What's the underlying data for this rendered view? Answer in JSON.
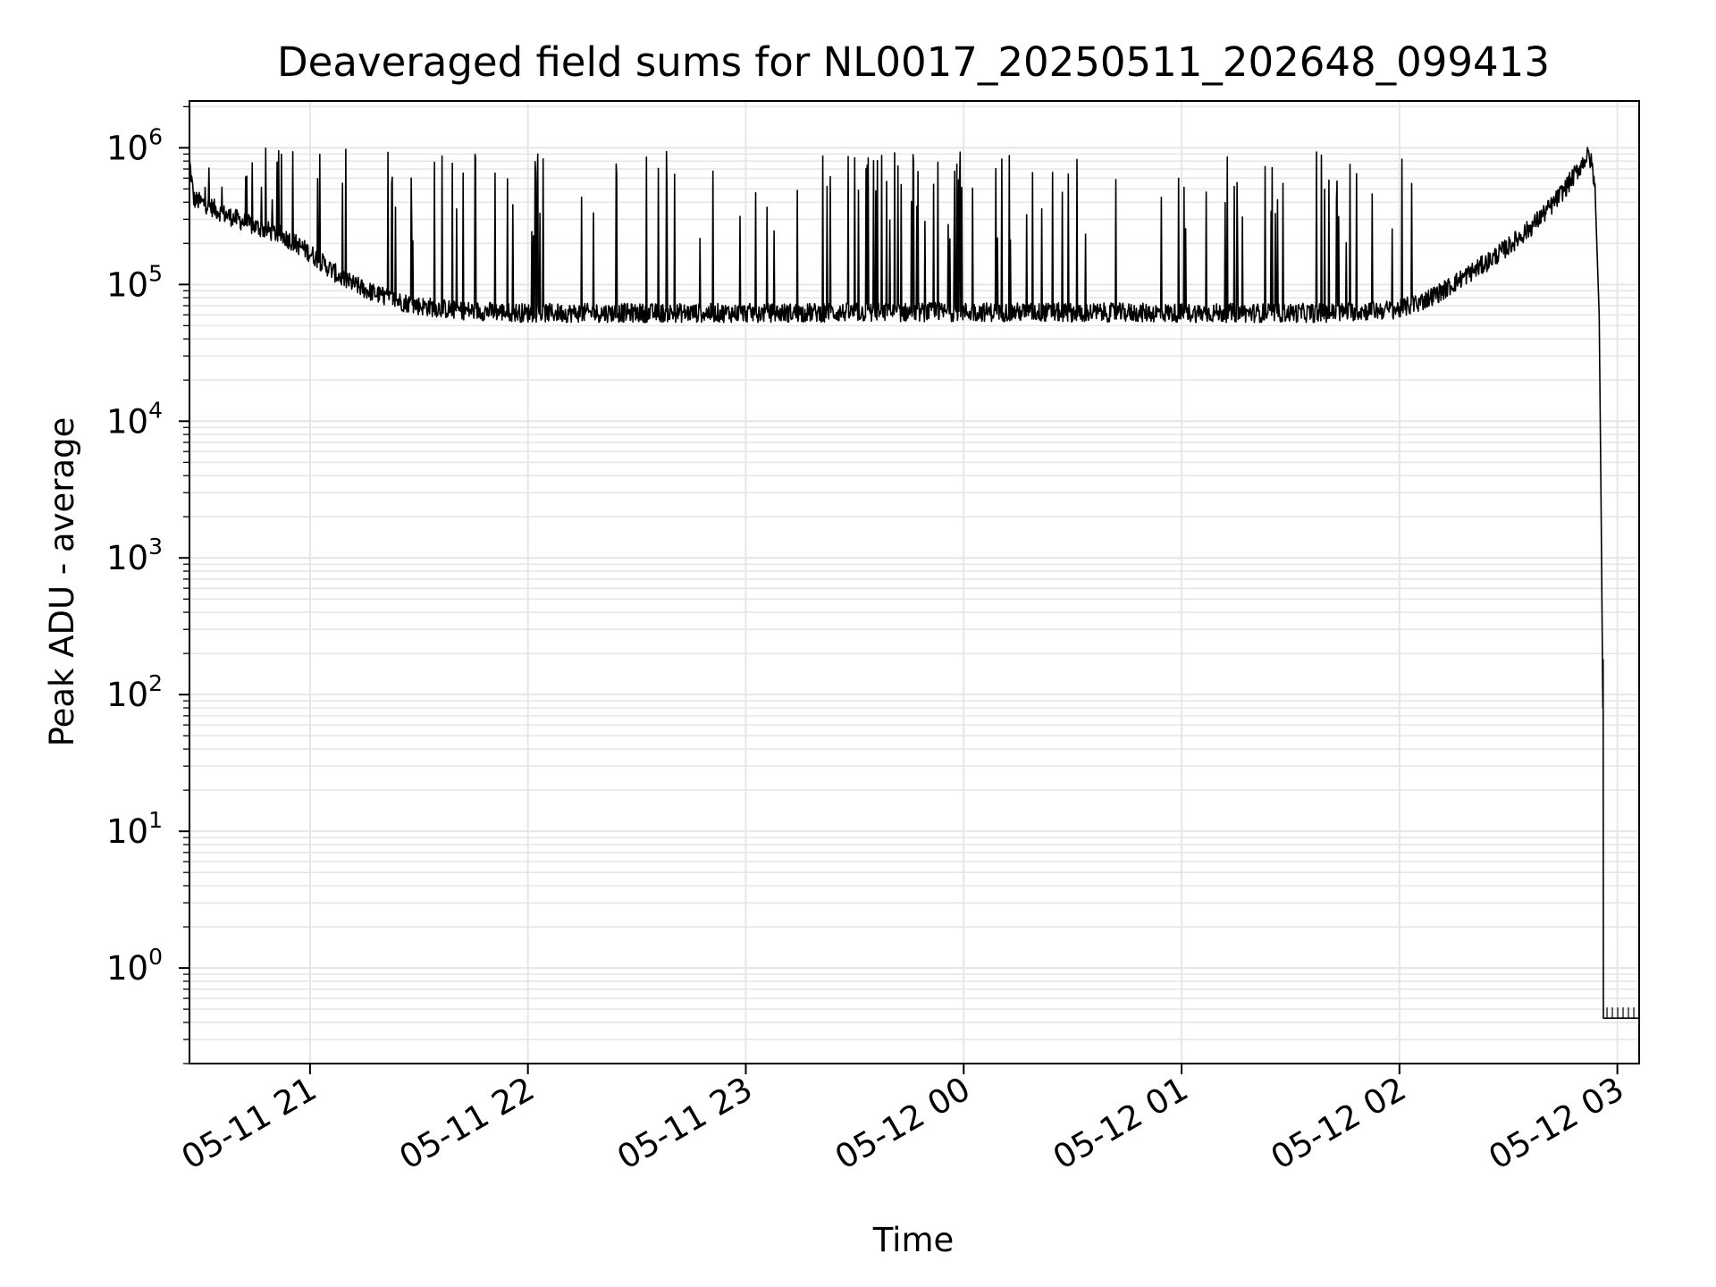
{
  "chart_data": {
    "type": "line",
    "title": "Deaveraged field sums for NL0017_20250511_202648_099413",
    "xlabel": "Time",
    "ylabel": "Peak ADU - average",
    "yscale": "log",
    "ylim": [
      0.2,
      2200000
    ],
    "xlim": [
      "2025-05-11 20:26:48",
      "2025-05-12 03:06:00"
    ],
    "grid": true,
    "line_color": "#000000",
    "grid_color": "#e6e6e6",
    "x_ticks": [
      {
        "value": "2025-05-11 21:00",
        "label": "05-11 21"
      },
      {
        "value": "2025-05-11 22:00",
        "label": "05-11 22"
      },
      {
        "value": "2025-05-11 23:00",
        "label": "05-11 23"
      },
      {
        "value": "2025-05-12 00:00",
        "label": "05-12 00"
      },
      {
        "value": "2025-05-12 01:00",
        "label": "05-12 01"
      },
      {
        "value": "2025-05-12 02:00",
        "label": "05-12 02"
      },
      {
        "value": "2025-05-12 03:00",
        "label": "05-12 03"
      }
    ],
    "y_ticks": [
      {
        "value": 1,
        "base": "10",
        "exp": "0"
      },
      {
        "value": 10,
        "base": "10",
        "exp": "1"
      },
      {
        "value": 100,
        "base": "10",
        "exp": "2"
      },
      {
        "value": 1000,
        "base": "10",
        "exp": "3"
      },
      {
        "value": 10000,
        "base": "10",
        "exp": "4"
      },
      {
        "value": 100000,
        "base": "10",
        "exp": "5"
      },
      {
        "value": 1000000,
        "base": "10",
        "exp": "6"
      }
    ],
    "series": [
      {
        "points": [
          [
            "2025-05-11 20:26:48",
            800000
          ],
          [
            "2025-05-11 20:28",
            420000
          ],
          [
            "2025-05-11 20:32",
            380000
          ],
          [
            "2025-05-11 20:36",
            330000
          ],
          [
            "2025-05-11 20:40",
            300000
          ],
          [
            "2025-05-11 20:44",
            270000
          ],
          [
            "2025-05-11 20:48",
            250000
          ],
          [
            "2025-05-11 20:52",
            230000
          ],
          [
            "2025-05-11 20:56",
            200000
          ],
          [
            "2025-05-11 21:00",
            170000
          ],
          [
            "2025-05-11 21:04",
            140000
          ],
          [
            "2025-05-11 21:08",
            115000
          ],
          [
            "2025-05-11 21:12",
            100000
          ],
          [
            "2025-05-11 21:16",
            90000
          ],
          [
            "2025-05-11 21:20",
            82000
          ],
          [
            "2025-05-11 21:25",
            75000
          ],
          [
            "2025-05-11 21:30",
            70000
          ],
          [
            "2025-05-11 21:40",
            65000
          ],
          [
            "2025-05-11 22:00",
            62000
          ],
          [
            "2025-05-11 23:00",
            62000
          ],
          [
            "2025-05-12 00:00",
            63000
          ],
          [
            "2025-05-12 01:00",
            62000
          ],
          [
            "2025-05-12 01:40",
            62000
          ],
          [
            "2025-05-12 02:00",
            66000
          ],
          [
            "2025-05-12 02:06",
            75000
          ],
          [
            "2025-05-12 02:12",
            90000
          ],
          [
            "2025-05-12 02:18",
            115000
          ],
          [
            "2025-05-12 02:24",
            145000
          ],
          [
            "2025-05-12 02:30",
            190000
          ],
          [
            "2025-05-12 02:36",
            260000
          ],
          [
            "2025-05-12 02:42",
            380000
          ],
          [
            "2025-05-12 02:46",
            520000
          ],
          [
            "2025-05-12 02:49",
            680000
          ],
          [
            "2025-05-12 02:51",
            820000
          ],
          [
            "2025-05-12 02:52",
            880000
          ],
          [
            "2025-05-12 02:53",
            760000
          ],
          [
            "2025-05-12 02:54",
            450000
          ],
          [
            "2025-05-12 02:55",
            60000
          ],
          [
            "2025-05-12 02:55:30",
            3000
          ],
          [
            "2025-05-12 02:56",
            80
          ],
          [
            "2025-05-12 02:56:05",
            180
          ],
          [
            "2025-05-12 02:56:10",
            0.43
          ],
          [
            "2025-05-12 03:06:00",
            0.43
          ]
        ]
      }
    ]
  }
}
